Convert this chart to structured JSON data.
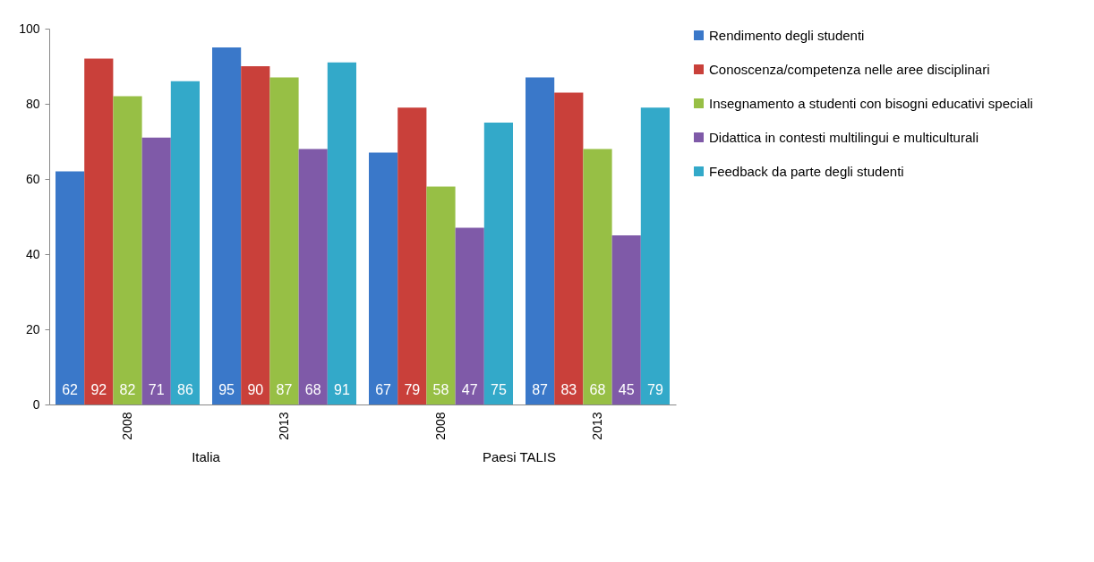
{
  "chart_data": {
    "type": "bar",
    "categories": [
      "2008",
      "2013",
      "2008",
      "2013"
    ],
    "series": [
      {
        "name": "Rendimento degli studenti",
        "color": "#3a78c9",
        "values": [
          62,
          95,
          67,
          87
        ]
      },
      {
        "name": "Conoscenza/competenza nelle aree disciplinari",
        "color": "#c9403a",
        "values": [
          92,
          90,
          79,
          83
        ]
      },
      {
        "name": "Insegnamento a studenti con bisogni educativi speciali",
        "color": "#97bf45",
        "values": [
          82,
          87,
          58,
          68
        ]
      },
      {
        "name": "Didattica in contesti multilingui e multiculturali",
        "color": "#7f5aa8",
        "values": [
          71,
          68,
          47,
          45
        ]
      },
      {
        "name": "Feedback da parte degli studenti",
        "color": "#33a9c9",
        "values": [
          86,
          91,
          75,
          79
        ]
      }
    ],
    "annotations": [
      "Italia",
      "Paesi TALIS"
    ],
    "ylim": [
      0,
      100
    ],
    "yticks": [
      0,
      20,
      40,
      60,
      80,
      100
    ],
    "grid": false,
    "legend": "right",
    "data_labels": true
  }
}
